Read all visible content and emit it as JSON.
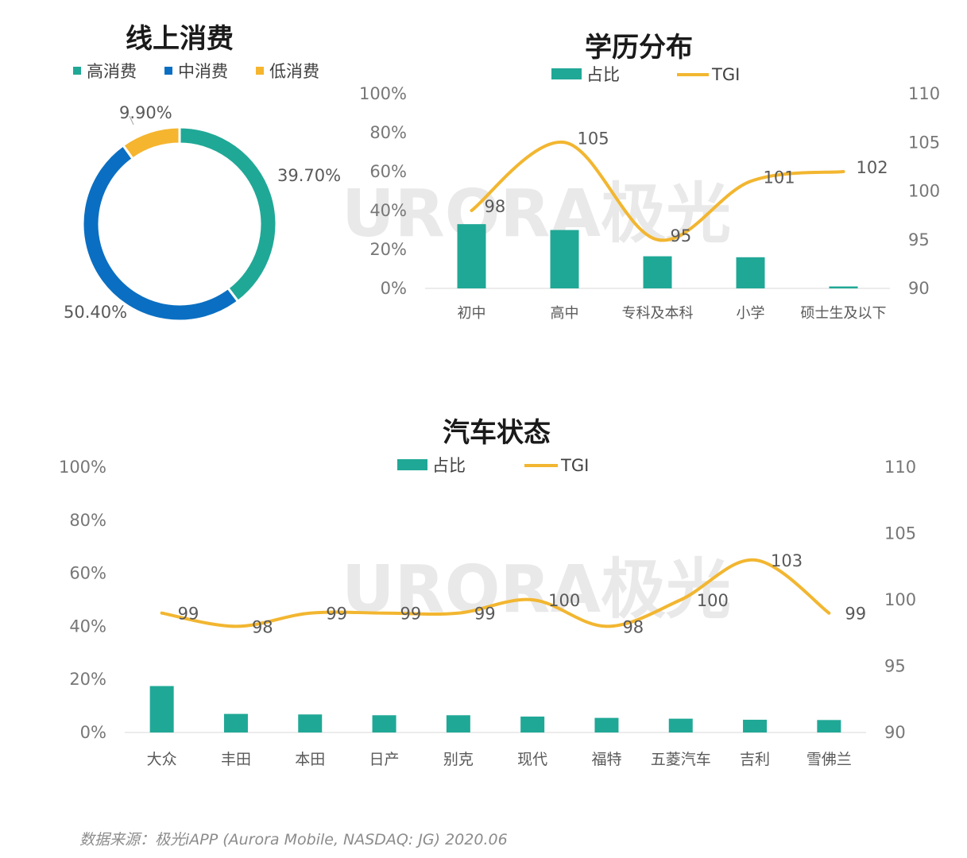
{
  "colors": {
    "teal": "#20a896",
    "blue": "#0a6fc2",
    "orange": "#f5b52e",
    "line": "#f2b630",
    "axis": "#d9d9d9"
  },
  "watermark": "URORA极光",
  "source": "数据来源：极光iAPP (Aurora Mobile, NASDAQ: JG) 2020.06",
  "chart_data": [
    {
      "type": "pie",
      "title": "线上消费",
      "donut": true,
      "series": [
        {
          "name": "高消费",
          "value": 39.7,
          "label": "39.70%",
          "color": "#20a896"
        },
        {
          "name": "中消费",
          "value": 50.4,
          "label": "50.40%",
          "color": "#0a6fc2"
        },
        {
          "name": "低消费",
          "value": 9.9,
          "label": "9.90%",
          "color": "#f5b52e"
        }
      ]
    },
    {
      "type": "bar",
      "title": "学历分布",
      "legend": [
        "占比",
        "TGI"
      ],
      "categories": [
        "初中",
        "高中",
        "专科及本科",
        "小学",
        "硕士生及以下"
      ],
      "series": [
        {
          "name": "占比",
          "values": [
            33,
            30,
            16.5,
            16,
            1
          ]
        },
        {
          "name": "TGI",
          "type": "line",
          "values": [
            98,
            105,
            95,
            101,
            102
          ],
          "labels": [
            "98",
            "105",
            "95",
            "101",
            "102"
          ]
        }
      ],
      "ylim": [
        0,
        100
      ],
      "y_ticks": [
        "100%",
        "80%",
        "60%",
        "40%",
        "20%",
        "0%"
      ],
      "y2lim": [
        90,
        110
      ],
      "y2_ticks": [
        "110",
        "105",
        "100",
        "95",
        "90"
      ]
    },
    {
      "type": "bar",
      "title": "汽车状态",
      "legend": [
        "占比",
        "TGI"
      ],
      "categories": [
        "大众",
        "丰田",
        "本田",
        "日产",
        "别克",
        "现代",
        "福特",
        "五菱汽车",
        "吉利",
        "雪佛兰"
      ],
      "series": [
        {
          "name": "占比",
          "values": [
            17.5,
            7,
            6.8,
            6.5,
            6.5,
            6,
            5.5,
            5.2,
            4.8,
            4.7
          ]
        },
        {
          "name": "TGI",
          "type": "line",
          "values": [
            99,
            98,
            99,
            99,
            99,
            100,
            98,
            100,
            103,
            99
          ],
          "labels": [
            "99",
            "98",
            "99",
            "99",
            "99",
            "100",
            "98",
            "100",
            "103",
            "99"
          ]
        }
      ],
      "ylim": [
        0,
        100
      ],
      "y_ticks": [
        "100%",
        "80%",
        "60%",
        "40%",
        "20%",
        "0%"
      ],
      "y2lim": [
        90,
        110
      ],
      "y2_ticks": [
        "110",
        "105",
        "100",
        "95",
        "90"
      ]
    }
  ]
}
